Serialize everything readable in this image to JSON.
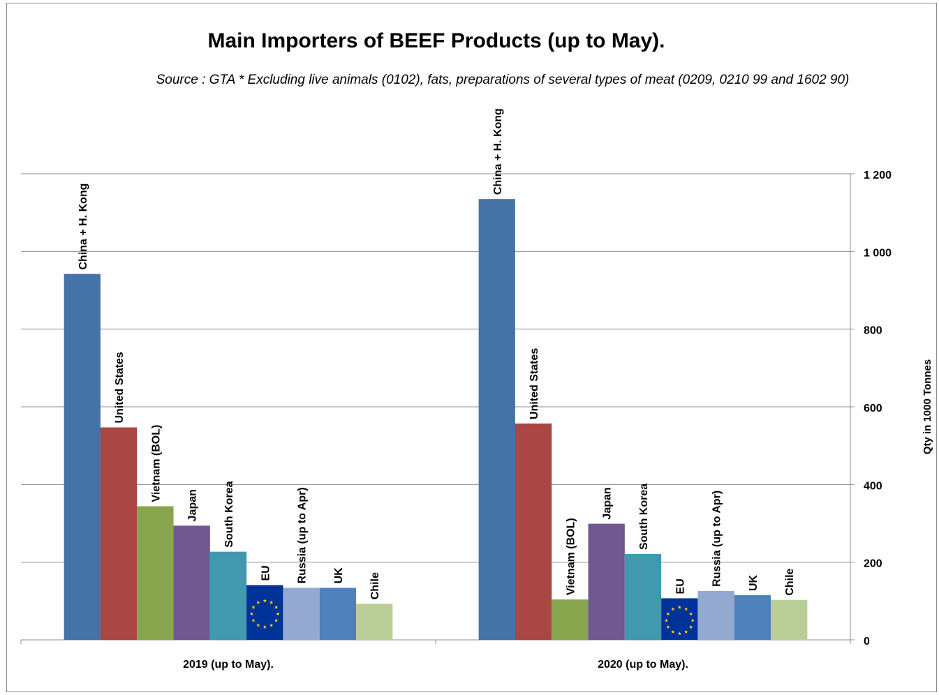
{
  "chart_data": {
    "type": "bar",
    "title": "Main Importers of BEEF Products (up to May).",
    "subtitle": "Source : GTA  * Excluding live animals (0102), fats, preparations of several types of meat (0209,  0210 99 and 1602  90)",
    "ylabel": "Qty in  1000 Tonnes",
    "xlabel": "",
    "ylim": [
      0,
      1200
    ],
    "yticks": [
      0,
      200,
      400,
      600,
      800,
      1000,
      1200
    ],
    "ytick_labels": [
      "0",
      "200",
      "400",
      "600",
      "800",
      "1 000",
      "1 200"
    ],
    "y_axis_side": "right",
    "grid": true,
    "legend": "none",
    "categories": [
      "2019 (up to May).",
      "2020 (up to May)."
    ],
    "series": [
      {
        "name": "China + H. Kong",
        "color": "#4572A7",
        "values": [
          942,
          1135
        ]
      },
      {
        "name": "United States",
        "color": "#AA4643",
        "values": [
          547,
          557
        ]
      },
      {
        "name": "Vietnam (BOL)",
        "color": "#89A54E",
        "values": [
          344,
          104
        ]
      },
      {
        "name": "Japan",
        "color": "#71588F",
        "values": [
          294,
          299
        ]
      },
      {
        "name": "South Korea",
        "color": "#4198AF",
        "values": [
          227,
          221
        ]
      },
      {
        "name": "EU",
        "color": "#003399",
        "values": [
          141,
          107
        ],
        "pattern": "eu-flag"
      },
      {
        "name": "Russia  (up to Apr)",
        "color": "#93A9CF",
        "values": [
          134,
          126
        ]
      },
      {
        "name": "UK",
        "color": "#4F81BD",
        "values": [
          134,
          115
        ]
      },
      {
        "name": "Chile",
        "color": "#B9CD96",
        "values": [
          93,
          103
        ]
      }
    ]
  }
}
